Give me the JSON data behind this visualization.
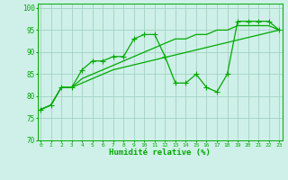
{
  "xlabel": "Humidité relative (%)",
  "x_ticks": [
    0,
    1,
    2,
    3,
    4,
    5,
    6,
    7,
    8,
    9,
    10,
    11,
    12,
    13,
    14,
    15,
    16,
    17,
    18,
    19,
    20,
    21,
    22,
    23
  ],
  "ylim": [
    70,
    101
  ],
  "xlim": [
    -0.3,
    23.3
  ],
  "yticks": [
    70,
    75,
    80,
    85,
    90,
    95,
    100
  ],
  "background_color": "#cef0e8",
  "grid_color": "#99ccbb",
  "line_color": "#00aa00",
  "line1_x": [
    0,
    1,
    2,
    3,
    4,
    5,
    6,
    7,
    8,
    9,
    10,
    11,
    12,
    13,
    14,
    15,
    16,
    17,
    18,
    19,
    20,
    21,
    22,
    23
  ],
  "line1_y": [
    77,
    78,
    82,
    82,
    86,
    88,
    88,
    89,
    89,
    93,
    94,
    94,
    89,
    83,
    83,
    85,
    82,
    81,
    85,
    97,
    97,
    97,
    97,
    95
  ],
  "line2_x": [
    0,
    1,
    2,
    3,
    4,
    5,
    6,
    7,
    8,
    9,
    10,
    11,
    12,
    13,
    14,
    15,
    16,
    17,
    18,
    19,
    20,
    21,
    22,
    23
  ],
  "line2_y": [
    77,
    78,
    82,
    82,
    84,
    85,
    86,
    87,
    88,
    89,
    90,
    91,
    92,
    93,
    93,
    94,
    94,
    95,
    95,
    96,
    96,
    96,
    96,
    95
  ],
  "line3_x": [
    0,
    1,
    2,
    3,
    4,
    5,
    6,
    7,
    23
  ],
  "line3_y": [
    77,
    78,
    82,
    82,
    83,
    84,
    85,
    86,
    95
  ]
}
